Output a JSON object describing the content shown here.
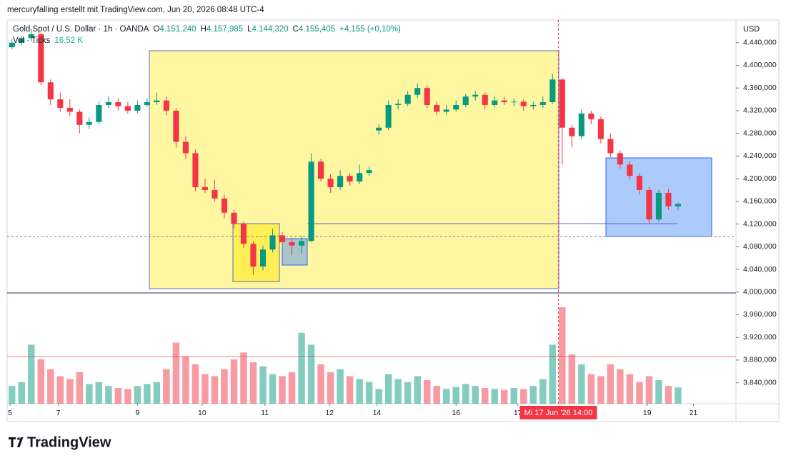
{
  "header": {
    "attribution": "mercuryfalling erstellt mit TradingView.com, Jun 20, 2026 08:48 UTC-4"
  },
  "footer": {
    "brand": "TradingView"
  },
  "chart_data": {
    "type": "candlestick",
    "symbol": "Gold Spot / U.S. Dollar · 1h · OANDA",
    "legend_ohlc": [
      {
        "key": "O",
        "text": "4.151,240"
      },
      {
        "key": "H",
        "text": "4.157,985"
      },
      {
        "key": "L",
        "text": "4.144,320"
      },
      {
        "key": "C",
        "text": "4.155,405"
      }
    ],
    "change_label": "+4,155 (+0,10%)",
    "currency": "USD",
    "crosshair_label": "Mi 17 Jun '26 14:00",
    "up_color": "#089981",
    "down_color": "#f23645",
    "grid": false,
    "open": [
      4432,
      4440,
      4448,
      4455,
      4370,
      4340,
      4325,
      4318,
      4295,
      4300,
      4330,
      4335,
      4328,
      4320,
      4330,
      4335,
      4338,
      4320,
      4265,
      4245,
      4185,
      4180,
      4165,
      4140,
      4120,
      4085,
      4045,
      4075,
      4100,
      4088,
      4082,
      4090,
      4230,
      4200,
      4185,
      4205,
      4195,
      4210,
      4285,
      4290,
      4330,
      4332,
      4348,
      4360,
      4330,
      4318,
      4322,
      4330,
      4345,
      4348,
      4330,
      4338,
      4335,
      4336,
      4328,
      4330,
      4335,
      4375,
      4290,
      4275,
      4315,
      4305,
      4270,
      4245,
      4225,
      4205,
      4180,
      4128,
      4175,
      4151.24
    ],
    "high": [
      4446,
      4452,
      4465,
      4458,
      4375,
      4352,
      4340,
      4322,
      4308,
      4336,
      4345,
      4342,
      4335,
      4338,
      4342,
      4352,
      4345,
      4324,
      4275,
      4252,
      4200,
      4198,
      4172,
      4145,
      4125,
      4090,
      4082,
      4112,
      4106,
      4095,
      4098,
      4245,
      4235,
      4208,
      4215,
      4210,
      4225,
      4222,
      4296,
      4338,
      4340,
      4355,
      4368,
      4364,
      4336,
      4330,
      4338,
      4350,
      4355,
      4352,
      4345,
      4345,
      4342,
      4340,
      4336,
      4345,
      4385,
      4378,
      4295,
      4322,
      4320,
      4310,
      4280,
      4250,
      4230,
      4210,
      4185,
      4180,
      4182,
      4157.985
    ],
    "low": [
      4428,
      4436,
      4442,
      4365,
      4330,
      4318,
      4310,
      4280,
      4288,
      4296,
      4325,
      4320,
      4315,
      4316,
      4326,
      4330,
      4312,
      4255,
      4235,
      4178,
      4175,
      4160,
      4130,
      4112,
      4078,
      4030,
      4038,
      4070,
      4082,
      4065,
      4068,
      4088,
      4195,
      4175,
      4180,
      4188,
      4190,
      4205,
      4278,
      4286,
      4322,
      4328,
      4342,
      4325,
      4312,
      4312,
      4318,
      4326,
      4338,
      4322,
      4326,
      4330,
      4328,
      4320,
      4322,
      4325,
      4332,
      4225,
      4255,
      4270,
      4296,
      4262,
      4238,
      4218,
      4198,
      4172,
      4120,
      4124,
      4145,
      4144.32
    ],
    "close": [
      4440,
      4448,
      4455,
      4370,
      4340,
      4325,
      4318,
      4295,
      4300,
      4330,
      4335,
      4328,
      4320,
      4330,
      4335,
      4338,
      4320,
      4265,
      4245,
      4185,
      4180,
      4165,
      4140,
      4120,
      4085,
      4045,
      4075,
      4100,
      4088,
      4082,
      4090,
      4230,
      4200,
      4185,
      4205,
      4195,
      4210,
      4215,
      4290,
      4330,
      4332,
      4348,
      4360,
      4330,
      4318,
      4322,
      4330,
      4345,
      4348,
      4330,
      4338,
      4335,
      4336,
      4328,
      4330,
      4335,
      4375,
      4290,
      4275,
      4315,
      4305,
      4270,
      4245,
      4225,
      4205,
      4180,
      4128,
      4175,
      4151.25,
      4155.405
    ],
    "volume": {
      "name": "Vol · Ticks",
      "last_label": "16,52 K",
      "values": [
        18,
        22,
        60,
        45,
        35,
        28,
        25,
        32,
        20,
        22,
        18,
        16,
        15,
        18,
        20,
        22,
        35,
        62,
        48,
        40,
        30,
        28,
        35,
        45,
        52,
        42,
        38,
        30,
        28,
        32,
        72,
        60,
        40,
        32,
        35,
        28,
        25,
        22,
        15,
        30,
        25,
        22,
        28,
        24,
        18,
        15,
        17,
        20,
        18,
        16,
        15,
        14,
        16,
        15,
        18,
        25,
        60,
        98,
        50,
        40,
        30,
        28,
        40,
        35,
        30,
        22,
        28,
        24,
        18,
        16.52
      ]
    },
    "xlim": [
      -0.5,
      75
    ],
    "xticks": [
      {
        "value": -0.2,
        "label": "5"
      },
      {
        "value": 4.8,
        "label": "7"
      },
      {
        "value": 13.0,
        "label": "9"
      },
      {
        "value": 19.7,
        "label": "10"
      },
      {
        "value": 26.2,
        "label": "11"
      },
      {
        "value": 32.9,
        "label": "12"
      },
      {
        "value": 37.8,
        "label": "14"
      },
      {
        "value": 46.0,
        "label": "16"
      },
      {
        "value": 52.4,
        "label": "17"
      },
      {
        "value": 65.8,
        "label": "19"
      },
      {
        "value": 70.6,
        "label": "21"
      }
    ],
    "crosshair_x": 56.6,
    "ylim": [
      3803,
      4480
    ],
    "yticks": [
      {
        "value": 4440,
        "label": "4.440,000"
      },
      {
        "value": 4400,
        "label": "4.400,000"
      },
      {
        "value": 4360,
        "label": "4.360,000"
      },
      {
        "value": 4320,
        "label": "4.320,000"
      },
      {
        "value": 4280,
        "label": "4.280,000"
      },
      {
        "value": 4240,
        "label": "4.240,000"
      },
      {
        "value": 4200,
        "label": "4.200,000"
      },
      {
        "value": 4160,
        "label": "4.160,000"
      },
      {
        "value": 4120,
        "label": "4.120,000"
      },
      {
        "value": 4080,
        "label": "4.080,000"
      },
      {
        "value": 4040,
        "label": "4.040,000"
      },
      {
        "value": 4000,
        "label": "4.000,000"
      },
      {
        "value": 3960,
        "label": "3.960,000"
      },
      {
        "value": 3920,
        "label": "3.920,000"
      },
      {
        "value": 3880,
        "label": "3.880,000"
      },
      {
        "value": 3840,
        "label": "3.840,000"
      }
    ]
  }
}
